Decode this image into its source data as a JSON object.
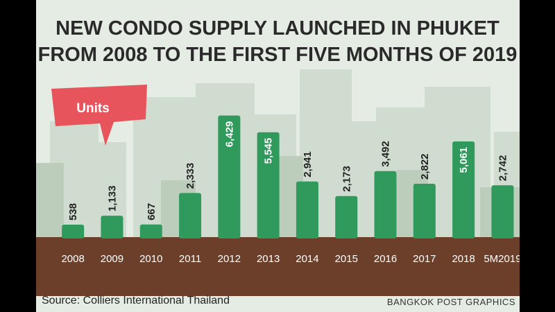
{
  "chart_data": {
    "type": "bar",
    "title": "NEW CONDO SUPPLY LAUNCHED IN PHUKET FROM 2008 TO THE FIRST FIVE MONTHS OF 2019",
    "title_lines": [
      "NEW CONDO SUPPLY LAUNCHED IN PHUKET",
      "FROM 2008 TO THE FIRST FIVE MONTHS OF 2019"
    ],
    "unit_label": "Units",
    "categories": [
      "2008",
      "2009",
      "2010",
      "2011",
      "2012",
      "2013",
      "2014",
      "2015",
      "2016",
      "2017",
      "2018",
      "5M2019"
    ],
    "values": [
      538,
      1133,
      667,
      2333,
      6429,
      5545,
      2941,
      2173,
      3492,
      2822,
      5061,
      2742
    ],
    "value_labels": [
      "538",
      "1,133",
      "667",
      "2,333",
      "6,429",
      "5,545",
      "2,941",
      "2,173",
      "3,492",
      "2,822",
      "5,061",
      "2,742"
    ],
    "ylim": [
      0,
      6600
    ],
    "grid": false,
    "bar_color": "#2f9a5c",
    "ground_color": "#6b3f2a"
  },
  "source": "Source: Colliers International Thailand",
  "credit": "BANGKOK POST GRAPHICS"
}
